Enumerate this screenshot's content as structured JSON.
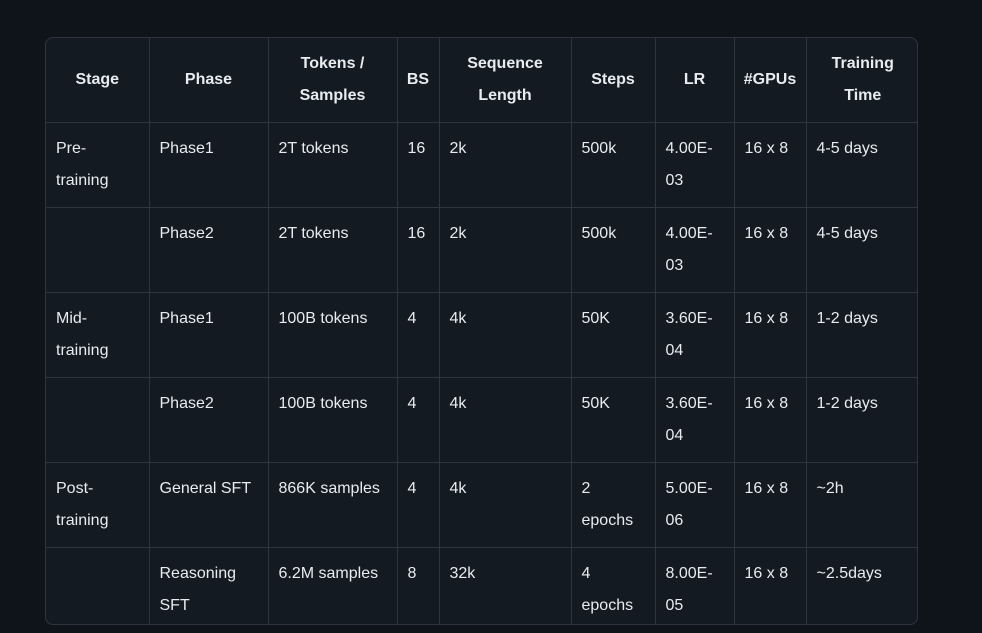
{
  "table": {
    "headers": [
      "Stage",
      "Phase",
      "Tokens / Samples",
      "BS",
      "Sequence Length",
      "Steps",
      "LR",
      "#GPUs",
      "Training Time"
    ],
    "rows": [
      [
        "Pre-training",
        "Phase1",
        "2T tokens",
        "16",
        "2k",
        "500k",
        "4.00E-03",
        "16 x 8",
        "4-5 days"
      ],
      [
        "",
        "Phase2",
        "2T tokens",
        "16",
        "2k",
        "500k",
        "4.00E-03",
        "16 x 8",
        "4-5 days"
      ],
      [
        "Mid-training",
        "Phase1",
        "100B tokens",
        "4",
        "4k",
        "50K",
        "3.60E-04",
        "16 x 8",
        "1-2 days"
      ],
      [
        "",
        "Phase2",
        "100B tokens",
        "4",
        "4k",
        "50K",
        "3.60E-04",
        "16 x 8",
        "1-2 days"
      ],
      [
        "Post-training",
        "General SFT",
        "866K samples",
        "4",
        "4k",
        "2 epochs",
        "5.00E-06",
        "16 x 8",
        "~2h"
      ],
      [
        "",
        "Reasoning SFT",
        "6.2M samples",
        "8",
        "32k",
        "4 epochs",
        "8.00E-05",
        "16 x 8",
        "~2.5days"
      ]
    ]
  }
}
